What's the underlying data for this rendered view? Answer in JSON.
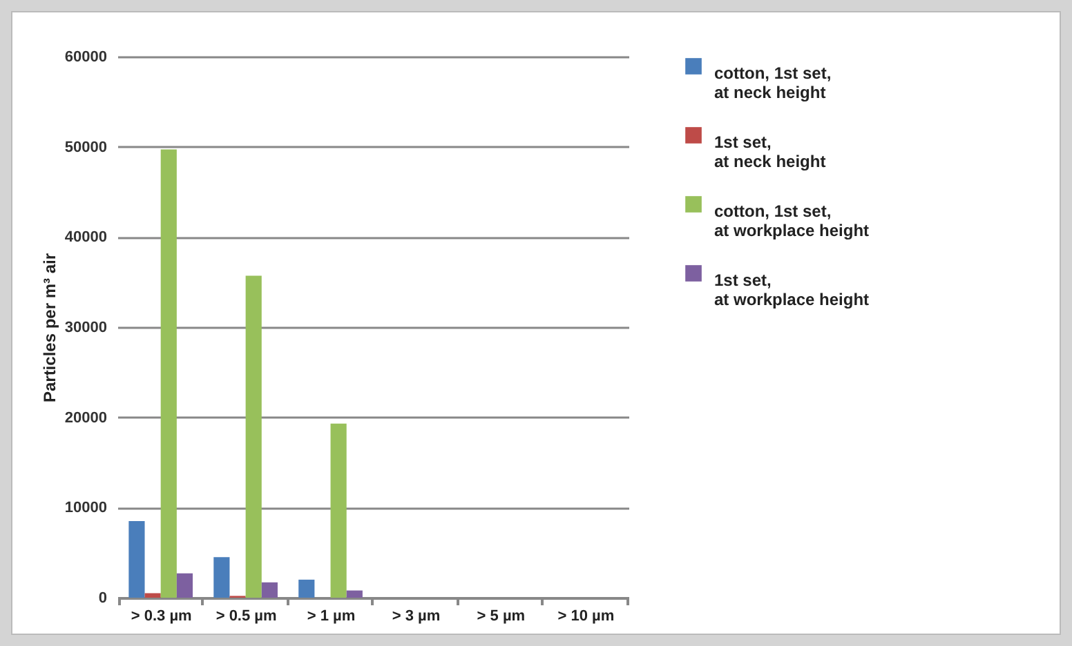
{
  "chart_data": {
    "type": "bar",
    "ylabel": "Particles per m³ air",
    "categories": [
      "> 0.3 µm",
      "> 0.5 µm",
      "> 1 µm",
      "> 3 µm",
      "> 5 µm",
      "> 10 µm"
    ],
    "series": [
      {
        "name": "cotton, 1st set, at neck height",
        "color": "#4a7ebb",
        "values": [
          8500,
          4500,
          2000,
          0,
          0,
          0
        ]
      },
      {
        "name": "1st set, at neck height",
        "color": "#be4b48",
        "values": [
          500,
          200,
          0,
          0,
          0,
          0
        ]
      },
      {
        "name": "cotton, 1st set, at workplace height",
        "color": "#98c05b",
        "values": [
          49700,
          35700,
          19300,
          0,
          0,
          0
        ]
      },
      {
        "name": "1st set, at workplace height",
        "color": "#7d60a0",
        "values": [
          2700,
          1700,
          800,
          0,
          0,
          0
        ]
      }
    ],
    "ylim": [
      0,
      60000
    ],
    "yticks": [
      0,
      10000,
      20000,
      30000,
      40000,
      50000,
      60000
    ],
    "grid": "y",
    "legend": "right"
  }
}
